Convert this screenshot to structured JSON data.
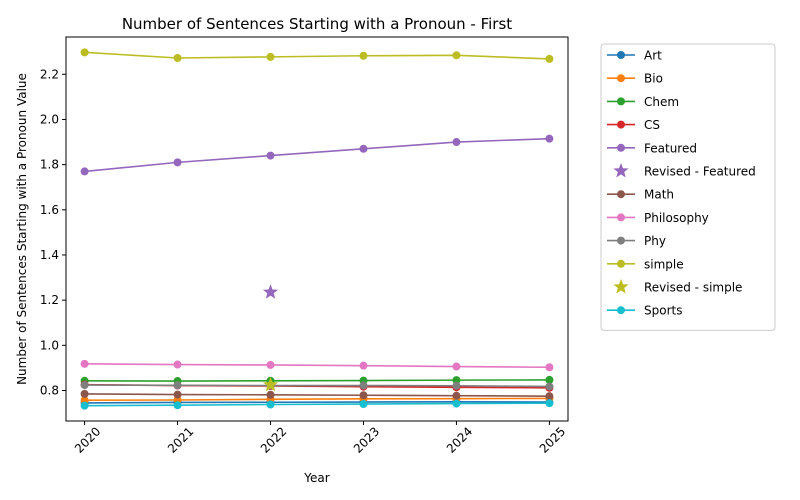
{
  "chart_data": {
    "type": "line",
    "title": "Number of Sentences Starting with a Pronoun - First",
    "xlabel": "Year",
    "ylabel": "Number of Sentences Starting with a Pronoun Value",
    "x": [
      2020,
      2021,
      2022,
      2023,
      2024,
      2025
    ],
    "xlim": [
      2019.8,
      2025.2
    ],
    "ylim": [
      0.665,
      2.365
    ],
    "yticks": [
      0.8,
      1.0,
      1.2,
      1.4,
      1.6,
      1.8,
      2.0,
      2.2
    ],
    "ytick_labels": [
      "0.8",
      "1.0",
      "1.2",
      "1.4",
      "1.6",
      "1.8",
      "2.0",
      "2.2"
    ],
    "grid": false,
    "legend_placement": "outside-right",
    "series": [
      {
        "name": "Art",
        "kind": "line",
        "color": "#1f77b4",
        "values": [
          0.745,
          0.747,
          0.748,
          0.749,
          0.75,
          0.749
        ]
      },
      {
        "name": "Bio",
        "kind": "line",
        "color": "#ff7f0e",
        "values": [
          0.757,
          0.758,
          0.761,
          0.763,
          0.764,
          0.765
        ]
      },
      {
        "name": "Chem",
        "kind": "line",
        "color": "#2ca02c",
        "values": [
          0.843,
          0.842,
          0.843,
          0.844,
          0.846,
          0.847
        ]
      },
      {
        "name": "CS",
        "kind": "line",
        "color": "#d62728",
        "values": [
          0.826,
          0.822,
          0.82,
          0.817,
          0.814,
          0.812
        ]
      },
      {
        "name": "Featured",
        "kind": "line",
        "color": "#9467bd",
        "values": [
          1.77,
          1.81,
          1.84,
          1.87,
          1.9,
          1.915
        ]
      },
      {
        "name": "Revised - Featured",
        "kind": "star",
        "color": "#9467bd",
        "points": [
          [
            2022,
            1.235
          ]
        ]
      },
      {
        "name": "Math",
        "kind": "line",
        "color": "#8c564b",
        "values": [
          0.785,
          0.782,
          0.781,
          0.779,
          0.777,
          0.775
        ]
      },
      {
        "name": "Philosophy",
        "kind": "line",
        "color": "#e377c2",
        "values": [
          0.918,
          0.915,
          0.913,
          0.91,
          0.906,
          0.903
        ]
      },
      {
        "name": "Phy",
        "kind": "line",
        "color": "#7f7f7f",
        "values": [
          0.824,
          0.823,
          0.822,
          0.822,
          0.821,
          0.818
        ]
      },
      {
        "name": "simple",
        "kind": "line",
        "color": "#bcbd22",
        "values": [
          2.297,
          2.272,
          2.277,
          2.282,
          2.284,
          2.268
        ]
      },
      {
        "name": "Revised - simple",
        "kind": "star",
        "color": "#bcbd22",
        "points": [
          [
            2022,
            0.825
          ]
        ]
      },
      {
        "name": "Sports",
        "kind": "line",
        "color": "#17becf",
        "values": [
          0.733,
          0.735,
          0.738,
          0.74,
          0.742,
          0.744
        ]
      }
    ]
  }
}
